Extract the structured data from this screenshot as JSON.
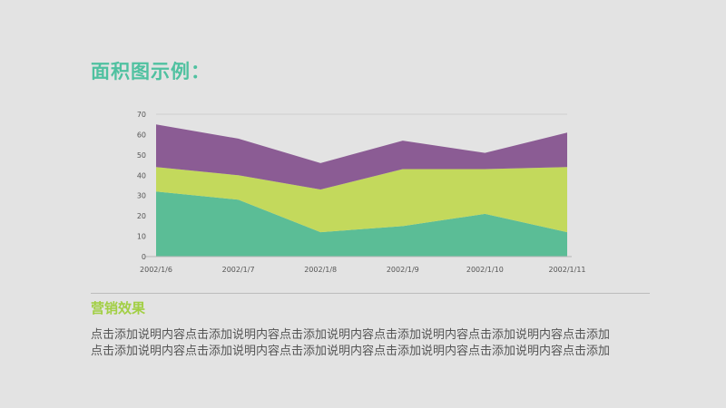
{
  "title": "面积图示例：",
  "subtitle": "营销效果",
  "description_lines": [
    "点击添加说明内容点击添加说明内容点击添加说明内容点击添加说明内容点击添加说明内容点击添加",
    "点击添加说明内容点击添加说明内容点击添加说明内容点击添加说明内容点击添加说明内容点击添加"
  ],
  "colors": {
    "series_bottom": "#5bbd96",
    "series_middle": "#c3d95c",
    "series_top": "#8b5c94",
    "title": "#4fc1a0",
    "subtitle": "#a2cf44"
  },
  "chart_data": {
    "type": "area",
    "stacked": true,
    "categories": [
      "2002/1/6",
      "2002/1/7",
      "2002/1/8",
      "2002/1/9",
      "2002/1/10",
      "2002/1/11"
    ],
    "series": [
      {
        "values": [
          32,
          28,
          12,
          15,
          21,
          12
        ]
      },
      {
        "values": [
          12,
          12,
          21,
          28,
          22,
          32
        ]
      },
      {
        "values": [
          21,
          18,
          13,
          14,
          8,
          17
        ]
      }
    ],
    "y_ticks": [
      "0",
      "10",
      "20",
      "30",
      "40",
      "50",
      "60",
      "70"
    ],
    "ylim": [
      0,
      70
    ],
    "grid": false
  }
}
